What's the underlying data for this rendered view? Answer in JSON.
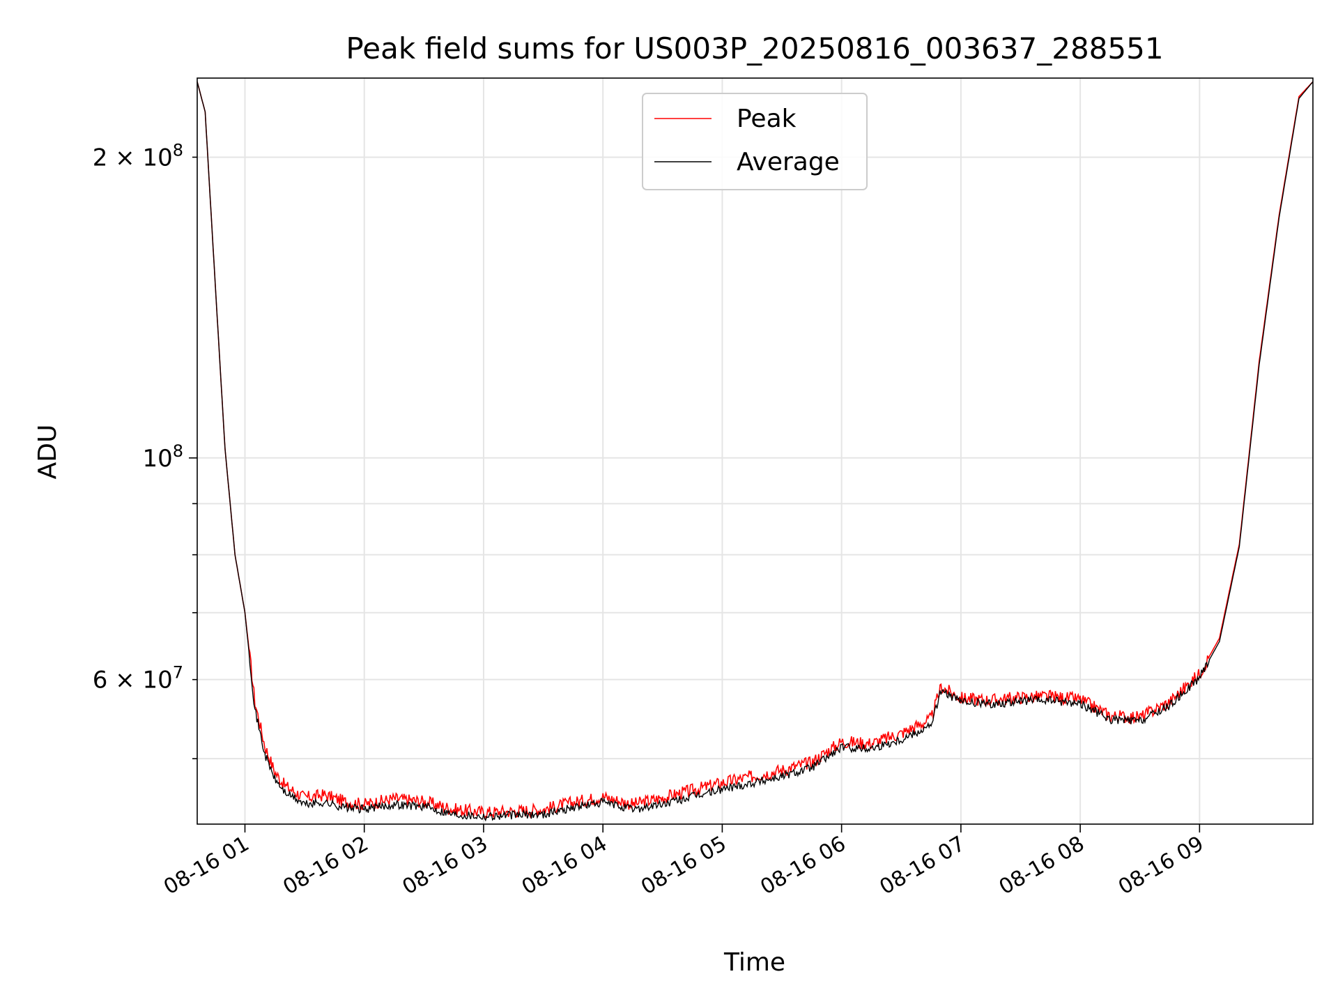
{
  "chart_data": {
    "type": "line",
    "title": "Peak field sums for US003P_20250816_003637_288551",
    "xlabel": "Time",
    "ylabel": "ADU",
    "yscale": "log",
    "x_range": [
      "2025-08-16 00:36",
      "2025-08-16 09:57"
    ],
    "ylim": [
      43000000,
      240000000
    ],
    "x_ticks": [
      "08-16 01",
      "08-16 02",
      "08-16 03",
      "08-16 04",
      "08-16 05",
      "08-16 06",
      "08-16 07",
      "08-16 08",
      "08-16 09"
    ],
    "y_ticks_major": [
      {
        "value": 100000000,
        "base": "10",
        "exp": "8"
      }
    ],
    "y_ticks_labeled_minor": [
      {
        "value": 200000000,
        "mantissa": "2",
        "base": "10",
        "exp": "8"
      },
      {
        "value": 60000000,
        "mantissa": "6",
        "base": "10",
        "exp": "7"
      }
    ],
    "y_ticks_minor_unlabeled": [
      50000000,
      70000000,
      80000000,
      90000000
    ],
    "grid": true,
    "legend": {
      "position": "top-center",
      "entries": [
        "Peak",
        "Average"
      ]
    },
    "series": [
      {
        "name": "Peak",
        "color": "#ff0000",
        "x": [
          "00:36",
          "00:40",
          "00:45",
          "00:50",
          "00:55",
          "01:00",
          "01:05",
          "01:10",
          "01:15",
          "01:20",
          "01:30",
          "01:40",
          "01:50",
          "02:00",
          "02:15",
          "02:30",
          "02:45",
          "03:00",
          "03:15",
          "03:30",
          "03:45",
          "04:00",
          "04:15",
          "04:30",
          "04:45",
          "05:00",
          "05:15",
          "05:30",
          "05:45",
          "06:00",
          "06:15",
          "06:30",
          "06:45",
          "06:50",
          "07:00",
          "07:15",
          "07:30",
          "07:45",
          "08:00",
          "08:15",
          "08:30",
          "08:45",
          "09:00",
          "09:10",
          "09:20",
          "09:30",
          "09:40",
          "09:50",
          "09:57"
        ],
        "values": [
          238000000,
          222000000,
          150000000,
          102000000,
          80000000,
          70000000,
          57000000,
          51500000,
          48500000,
          47000000,
          45700000,
          46000000,
          45300000,
          45000000,
          45600000,
          45300000,
          44500000,
          44200000,
          44300000,
          44500000,
          45200000,
          45800000,
          45000000,
          45700000,
          46500000,
          47300000,
          48000000,
          48700000,
          49600000,
          52000000,
          51800000,
          53000000,
          54800000,
          59000000,
          57500000,
          57200000,
          57600000,
          57700000,
          57300000,
          55200000,
          55000000,
          57000000,
          60800000,
          66000000,
          82000000,
          125000000,
          175000000,
          230000000,
          238000000
        ]
      },
      {
        "name": "Average",
        "color": "#000000",
        "x": [
          "00:36",
          "00:40",
          "00:45",
          "00:50",
          "00:55",
          "01:00",
          "01:05",
          "01:10",
          "01:15",
          "01:20",
          "01:30",
          "01:40",
          "01:50",
          "02:00",
          "02:15",
          "02:30",
          "02:45",
          "03:00",
          "03:15",
          "03:30",
          "03:45",
          "04:00",
          "04:15",
          "04:30",
          "04:45",
          "05:00",
          "05:15",
          "05:30",
          "05:45",
          "06:00",
          "06:15",
          "06:30",
          "06:45",
          "06:50",
          "07:00",
          "07:15",
          "07:30",
          "07:45",
          "08:00",
          "08:15",
          "08:30",
          "08:45",
          "09:00",
          "09:10",
          "09:20",
          "09:30",
          "09:40",
          "09:50",
          "09:57"
        ],
        "values": [
          238000000,
          222000000,
          150000000,
          102000000,
          80000000,
          70000000,
          56000000,
          50500000,
          47700000,
          46300000,
          45000000,
          45200000,
          44700000,
          44500000,
          45000000,
          44800000,
          44000000,
          43800000,
          43900000,
          44000000,
          44700000,
          45200000,
          44500000,
          45000000,
          45800000,
          46600000,
          47300000,
          48000000,
          49000000,
          51300000,
          51200000,
          52300000,
          54000000,
          58500000,
          57000000,
          56700000,
          57100000,
          57200000,
          56800000,
          54700000,
          54500000,
          56500000,
          60300000,
          65500000,
          81500000,
          124000000,
          174000000,
          229000000,
          238000000
        ]
      }
    ]
  }
}
